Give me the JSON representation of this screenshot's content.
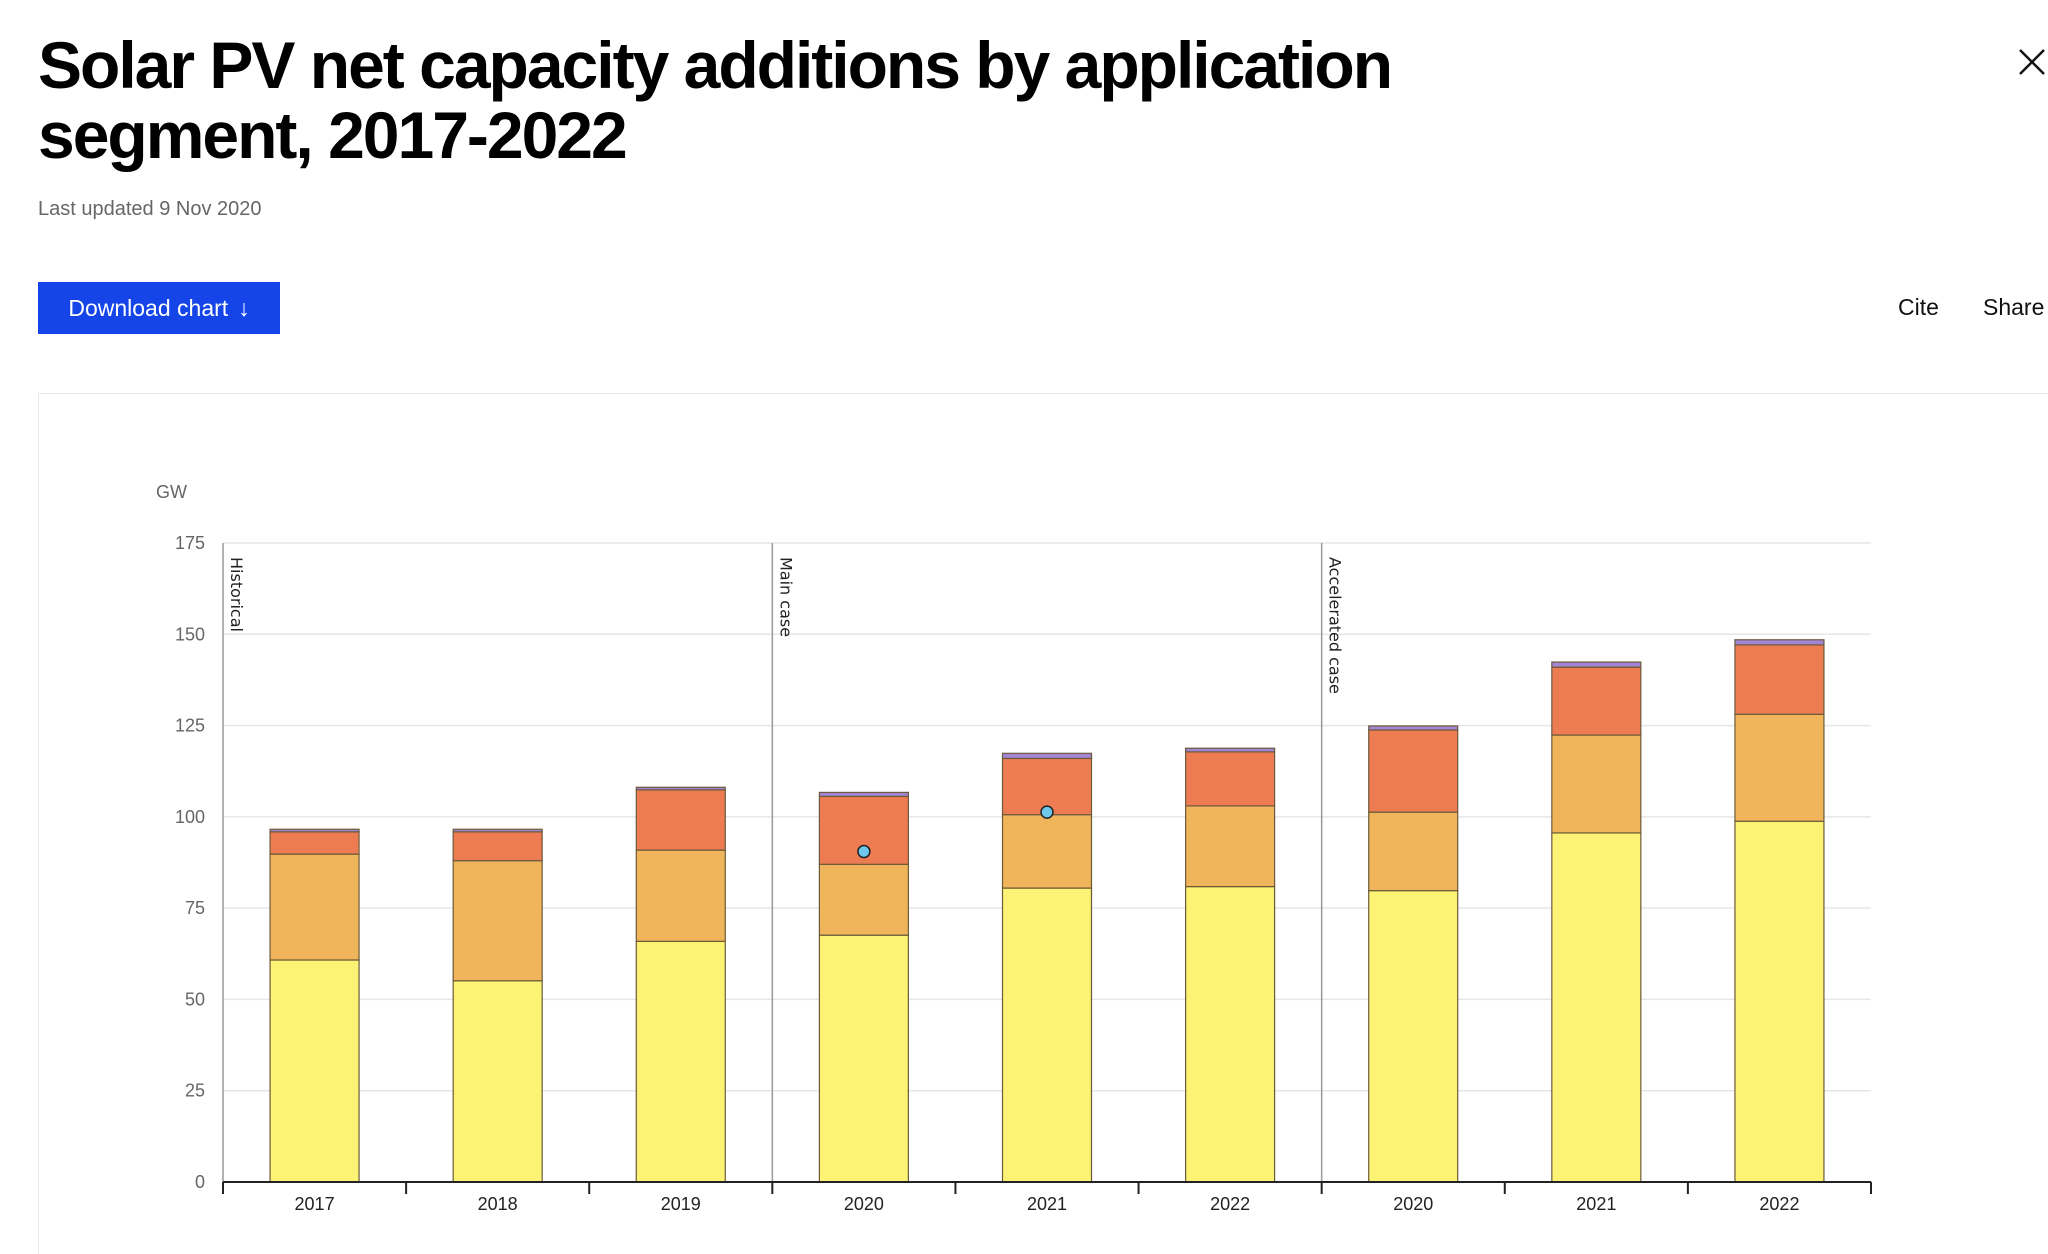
{
  "header": {
    "title": "Solar PV net capacity additions by application segment, 2017-2022",
    "last_updated": "Last updated 9 Nov 2020",
    "download_label": "Download chart",
    "download_icon": "arrow-down-icon",
    "cite_label": "Cite",
    "share_label": "Share",
    "close_icon": "close-icon",
    "accent_color": "#1544e8"
  },
  "chart_data": {
    "type": "bar",
    "stacked": true,
    "ylabel": "GW",
    "ylim": [
      0,
      175
    ],
    "yticks": [
      "0",
      "25",
      "50",
      "75",
      "100",
      "125",
      "150",
      "175"
    ],
    "ytick_values": [
      0,
      25,
      50,
      75,
      100,
      125,
      150,
      175
    ],
    "grid": true,
    "categories": [
      "2017",
      "2018",
      "2019",
      "2020",
      "2021",
      "2022",
      "2020",
      "2021",
      "2022"
    ],
    "groups": [
      {
        "label": "Historical",
        "categories": [
          0,
          1,
          2
        ]
      },
      {
        "label": "Main case",
        "categories": [
          3,
          4,
          5
        ]
      },
      {
        "label": "Accelerated case",
        "categories": [
          6,
          7,
          8
        ]
      }
    ],
    "series": [
      {
        "color": "#fcf273",
        "values": [
          60.8,
          55.1,
          65.9,
          67.6,
          80.5,
          80.9,
          79.8,
          95.6,
          98.8
        ]
      },
      {
        "color": "#f0b55a",
        "values": [
          29.0,
          32.9,
          25.0,
          19.4,
          20.1,
          22.1,
          21.5,
          26.8,
          29.3
        ]
      },
      {
        "color": "#ee7c53",
        "values": [
          6.1,
          7.9,
          16.5,
          18.6,
          15.4,
          14.8,
          22.5,
          18.6,
          19.0
        ]
      },
      {
        "color": "#a385d6",
        "values": [
          0.7,
          0.7,
          0.7,
          1.1,
          1.4,
          1.0,
          1.1,
          1.4,
          1.4
        ]
      }
    ],
    "markers": {
      "type": "scatter",
      "color": "#6fc8ec",
      "values": [
        null,
        null,
        null,
        90.5,
        101.3,
        null,
        null,
        null,
        null
      ]
    }
  }
}
